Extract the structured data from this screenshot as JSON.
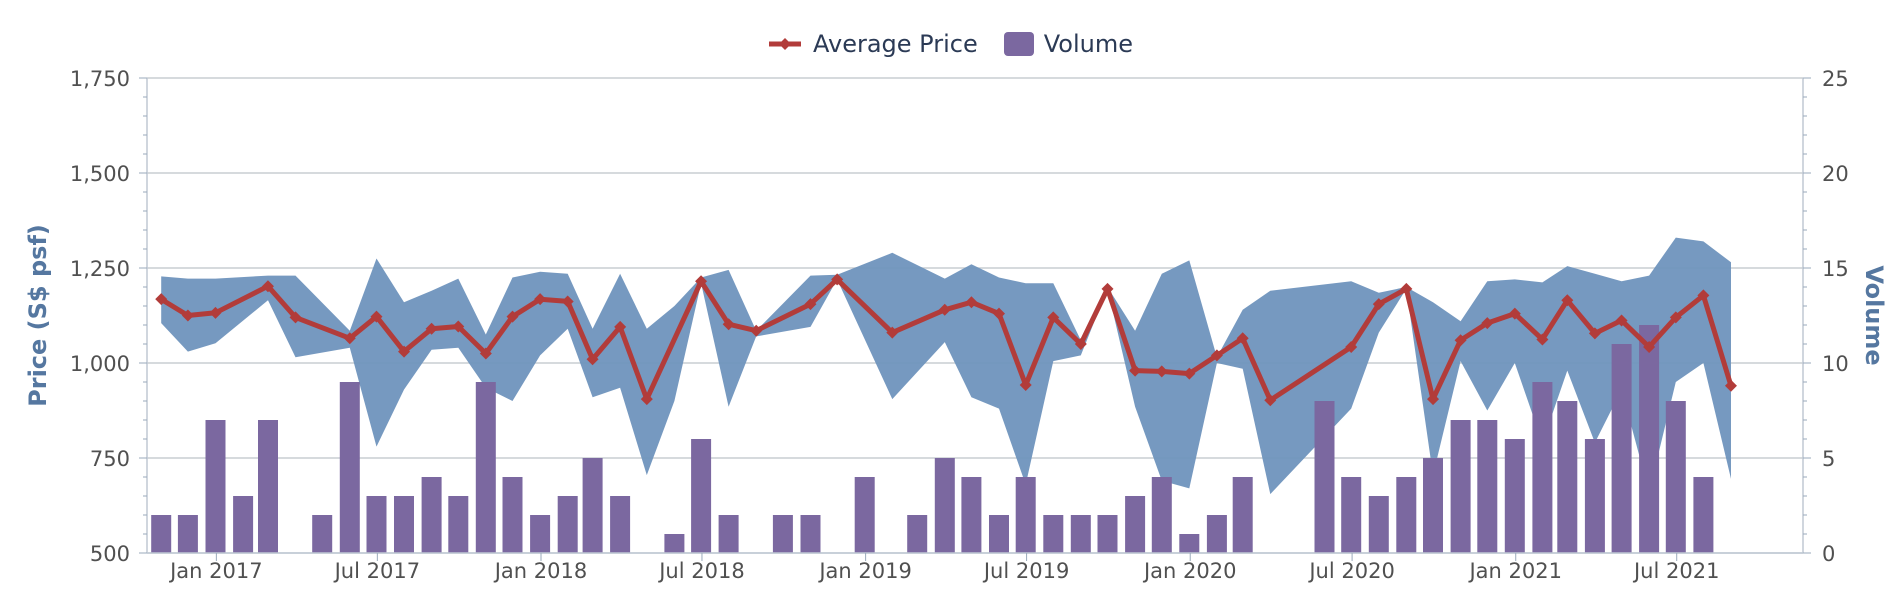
{
  "legend": {
    "price_label": "Average Price",
    "volume_label": "Volume"
  },
  "colors": {
    "price_line": "#b23c3a",
    "price_marker": "#b23c3a",
    "volume_bar": "#7b68a0",
    "range_band": "#6f93bd",
    "grid": "#c8cdd2",
    "axis_title": "#5577a0"
  },
  "chart_data": {
    "type": "line",
    "title": "",
    "yaxis_left": {
      "label": "Price (S$ psf)",
      "ylim": [
        500,
        1750
      ],
      "ticks": [
        "500",
        "750",
        "1,000",
        "1,250",
        "1,500",
        "1,750"
      ]
    },
    "yaxis_right": {
      "label": "Volume",
      "ylim": [
        0,
        25
      ],
      "ticks": [
        "0",
        "5",
        "10",
        "15",
        "20",
        "25"
      ]
    },
    "xaxis": {
      "range": [
        "2016-10-15",
        "2021-11-20"
      ],
      "ticks": [
        {
          "date": "2017-01-01",
          "label": "Jan 2017"
        },
        {
          "date": "2017-07-01",
          "label": "Jul 2017"
        },
        {
          "date": "2018-01-01",
          "label": "Jan 2018"
        },
        {
          "date": "2018-07-01",
          "label": "Jul 2018"
        },
        {
          "date": "2019-01-01",
          "label": "Jan 2019"
        },
        {
          "date": "2019-07-01",
          "label": "Jul 2019"
        },
        {
          "date": "2020-01-01",
          "label": "Jan 2020"
        },
        {
          "date": "2020-07-01",
          "label": "Jul 2020"
        },
        {
          "date": "2021-01-01",
          "label": "Jan 2021"
        },
        {
          "date": "2021-07-01",
          "label": "Jul 2021"
        }
      ]
    },
    "grid": true,
    "legend_position": "top-center",
    "series": [
      {
        "name": "Average Price",
        "type": "line",
        "points": [
          [
            "2016-10-31",
            1168
          ],
          [
            "2016-11-30",
            1125
          ],
          [
            "2016-12-31",
            1132
          ],
          [
            "2017-02-28",
            1202
          ],
          [
            "2017-03-31",
            1120
          ],
          [
            "2017-05-31",
            1065
          ],
          [
            "2017-06-30",
            1122
          ],
          [
            "2017-07-31",
            1030
          ],
          [
            "2017-08-31",
            1090
          ],
          [
            "2017-09-30",
            1096
          ],
          [
            "2017-10-31",
            1025
          ],
          [
            "2017-11-30",
            1122
          ],
          [
            "2017-12-31",
            1168
          ],
          [
            "2018-01-31",
            1162
          ],
          [
            "2018-02-28",
            1010
          ],
          [
            "2018-03-31",
            1095
          ],
          [
            "2018-04-30",
            905
          ],
          [
            "2018-06-30",
            1215
          ],
          [
            "2018-07-31",
            1102
          ],
          [
            "2018-08-31",
            1085
          ],
          [
            "2018-10-31",
            1155
          ],
          [
            "2018-11-30",
            1220
          ],
          [
            "2019-01-31",
            1080
          ],
          [
            "2019-03-31",
            1140
          ],
          [
            "2019-04-30",
            1160
          ],
          [
            "2019-05-31",
            1130
          ],
          [
            "2019-06-30",
            942
          ],
          [
            "2019-07-31",
            1120
          ],
          [
            "2019-08-31",
            1050
          ],
          [
            "2019-09-30",
            1195
          ],
          [
            "2019-10-31",
            980
          ],
          [
            "2019-11-30",
            978
          ],
          [
            "2019-12-31",
            972
          ],
          [
            "2020-01-31",
            1020
          ],
          [
            "2020-02-29",
            1065
          ],
          [
            "2020-03-31",
            902
          ],
          [
            "2020-06-30",
            1042
          ],
          [
            "2020-07-31",
            1155
          ],
          [
            "2020-08-31",
            1195
          ],
          [
            "2020-09-30",
            905
          ],
          [
            "2020-10-31",
            1060
          ],
          [
            "2020-11-30",
            1105
          ],
          [
            "2020-12-31",
            1130
          ],
          [
            "2021-01-31",
            1062
          ],
          [
            "2021-02-28",
            1165
          ],
          [
            "2021-03-31",
            1078
          ],
          [
            "2021-04-30",
            1112
          ],
          [
            "2021-05-31",
            1042
          ],
          [
            "2021-06-30",
            1120
          ],
          [
            "2021-07-31",
            1178
          ],
          [
            "2021-08-31",
            940
          ]
        ]
      },
      {
        "name": "Volume",
        "type": "bar",
        "axis": "right",
        "points": [
          [
            "2016-10-31",
            2
          ],
          [
            "2016-11-30",
            2
          ],
          [
            "2016-12-31",
            7
          ],
          [
            "2017-01-31",
            3
          ],
          [
            "2017-02-28",
            7
          ],
          [
            "2017-04-30",
            2
          ],
          [
            "2017-05-31",
            9
          ],
          [
            "2017-06-30",
            3
          ],
          [
            "2017-07-31",
            3
          ],
          [
            "2017-08-31",
            4
          ],
          [
            "2017-09-30",
            3
          ],
          [
            "2017-10-31",
            9
          ],
          [
            "2017-11-30",
            4
          ],
          [
            "2017-12-31",
            2
          ],
          [
            "2018-01-31",
            3
          ],
          [
            "2018-02-28",
            5
          ],
          [
            "2018-03-31",
            3
          ],
          [
            "2018-05-31",
            1
          ],
          [
            "2018-06-30",
            6
          ],
          [
            "2018-07-31",
            2
          ],
          [
            "2018-09-30",
            2
          ],
          [
            "2018-10-31",
            2
          ],
          [
            "2018-12-31",
            4
          ],
          [
            "2019-02-28",
            2
          ],
          [
            "2019-03-31",
            5
          ],
          [
            "2019-04-30",
            4
          ],
          [
            "2019-05-31",
            2
          ],
          [
            "2019-06-30",
            4
          ],
          [
            "2019-07-31",
            2
          ],
          [
            "2019-08-31",
            2
          ],
          [
            "2019-09-30",
            2
          ],
          [
            "2019-10-31",
            3
          ],
          [
            "2019-11-30",
            4
          ],
          [
            "2019-12-31",
            1
          ],
          [
            "2020-01-31",
            2
          ],
          [
            "2020-02-29",
            4
          ],
          [
            "2020-05-31",
            8
          ],
          [
            "2020-06-30",
            4
          ],
          [
            "2020-07-31",
            3
          ],
          [
            "2020-08-31",
            4
          ],
          [
            "2020-09-30",
            5
          ],
          [
            "2020-10-31",
            7
          ],
          [
            "2020-11-30",
            7
          ],
          [
            "2020-12-31",
            6
          ],
          [
            "2021-01-31",
            9
          ],
          [
            "2021-02-28",
            8
          ],
          [
            "2021-03-31",
            6
          ],
          [
            "2021-04-30",
            11
          ],
          [
            "2021-05-31",
            12
          ],
          [
            "2021-06-30",
            8
          ],
          [
            "2021-07-31",
            4
          ]
        ]
      },
      {
        "name": "Price Range",
        "type": "arearange",
        "points": [
          [
            "2016-10-31",
            1105,
            1228
          ],
          [
            "2016-11-30",
            1030,
            1222
          ],
          [
            "2016-12-31",
            1052,
            1222
          ],
          [
            "2017-02-28",
            1165,
            1230
          ],
          [
            "2017-03-31",
            1015,
            1230
          ],
          [
            "2017-05-31",
            1040,
            1085
          ],
          [
            "2017-06-30",
            780,
            1275
          ],
          [
            "2017-07-31",
            930,
            1160
          ],
          [
            "2017-08-31",
            1035,
            1190
          ],
          [
            "2017-09-30",
            1040,
            1222
          ],
          [
            "2017-10-31",
            935,
            1075
          ],
          [
            "2017-11-30",
            900,
            1225
          ],
          [
            "2017-12-31",
            1020,
            1240
          ],
          [
            "2018-01-31",
            1090,
            1235
          ],
          [
            "2018-02-28",
            910,
            1090
          ],
          [
            "2018-03-31",
            935,
            1235
          ],
          [
            "2018-04-30",
            705,
            1090
          ],
          [
            "2018-05-31",
            900,
            1150
          ],
          [
            "2018-06-30",
            1210,
            1225
          ],
          [
            "2018-07-31",
            885,
            1245
          ],
          [
            "2018-08-31",
            1070,
            1085
          ],
          [
            "2018-10-31",
            1095,
            1230
          ],
          [
            "2018-11-30",
            1220,
            1232
          ],
          [
            "2019-01-31",
            905,
            1290
          ],
          [
            "2019-03-31",
            1055,
            1222
          ],
          [
            "2019-04-30",
            910,
            1260
          ],
          [
            "2019-05-31",
            880,
            1225
          ],
          [
            "2019-06-30",
            680,
            1210
          ],
          [
            "2019-07-31",
            1005,
            1210
          ],
          [
            "2019-08-31",
            1020,
            1060
          ],
          [
            "2019-09-30",
            1195,
            1200
          ],
          [
            "2019-10-31",
            885,
            1085
          ],
          [
            "2019-11-30",
            690,
            1235
          ],
          [
            "2019-12-31",
            670,
            1270
          ],
          [
            "2020-01-31",
            1000,
            1015
          ],
          [
            "2020-02-29",
            985,
            1140
          ],
          [
            "2020-03-31",
            655,
            1190
          ],
          [
            "2020-06-30",
            880,
            1215
          ],
          [
            "2020-07-31",
            1080,
            1185
          ],
          [
            "2020-08-31",
            1195,
            1200
          ],
          [
            "2020-09-30",
            705,
            1160
          ],
          [
            "2020-10-31",
            1005,
            1110
          ],
          [
            "2020-11-30",
            875,
            1215
          ],
          [
            "2020-12-31",
            1000,
            1220
          ],
          [
            "2021-01-31",
            790,
            1212
          ],
          [
            "2021-02-28",
            980,
            1255
          ],
          [
            "2021-03-31",
            790,
            1235
          ],
          [
            "2021-04-30",
            930,
            1215
          ],
          [
            "2021-05-31",
            660,
            1230
          ],
          [
            "2021-06-30",
            950,
            1330
          ],
          [
            "2021-07-31",
            1000,
            1320
          ],
          [
            "2021-08-31",
            695,
            1265
          ]
        ]
      }
    ]
  }
}
